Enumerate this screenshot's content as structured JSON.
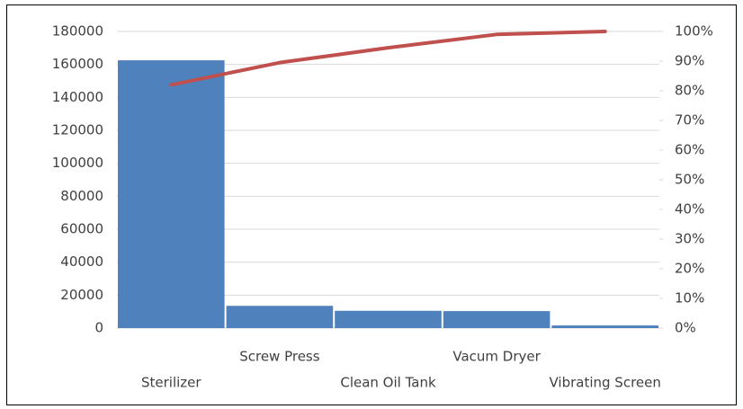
{
  "chart_data": {
    "type": "pareto",
    "categories": [
      "Sterilizer",
      "Screw Press",
      "Clean Oil Tank",
      "Vacum Dryer",
      "Vibrating Screen"
    ],
    "series": [
      {
        "type": "bar",
        "color": "#4f81bd",
        "values": [
          162500,
          13500,
          10500,
          10300,
          1600
        ]
      },
      {
        "type": "line",
        "color": "#c0504d",
        "axis": "y2",
        "values": [
          82,
          89.5,
          94.5,
          99,
          100
        ]
      }
    ],
    "ylim": [
      0,
      180000
    ],
    "yticks": [
      0,
      20000,
      40000,
      60000,
      80000,
      100000,
      120000,
      140000,
      160000,
      180000
    ],
    "y2lim": [
      0,
      100
    ],
    "y2ticks": [
      {
        "value": 0,
        "label": "0%"
      },
      {
        "value": 10,
        "label": "10%"
      },
      {
        "value": 20,
        "label": "20%"
      },
      {
        "value": 30,
        "label": "30%"
      },
      {
        "value": 40,
        "label": "40%"
      },
      {
        "value": 50,
        "label": "50%"
      },
      {
        "value": 60,
        "label": "60%"
      },
      {
        "value": 70,
        "label": "70%"
      },
      {
        "value": 80,
        "label": "80%"
      },
      {
        "value": 90,
        "label": "90%"
      },
      {
        "value": 100,
        "label": "100%"
      }
    ],
    "grid": true
  }
}
